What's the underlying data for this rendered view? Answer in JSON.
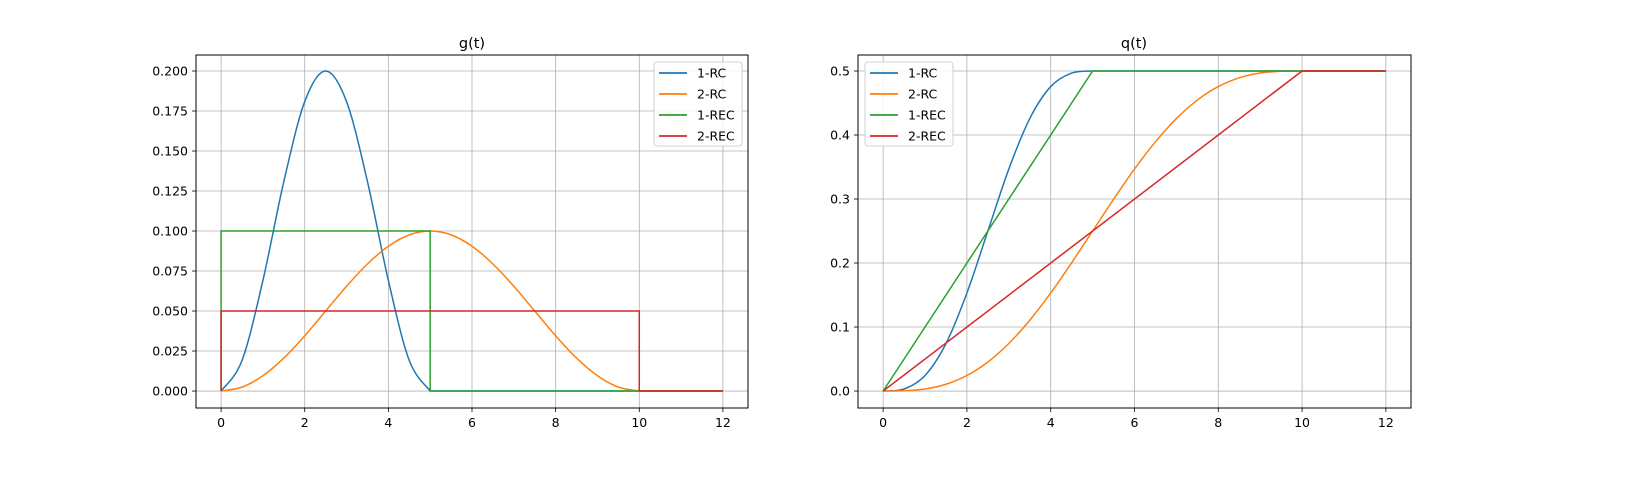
{
  "chart_data": [
    {
      "type": "line",
      "title": "g(t)",
      "xlabel": "",
      "ylabel": "",
      "xlim": [
        -0.6,
        12.6
      ],
      "ylim": [
        -0.0106,
        0.21
      ],
      "xticks": [
        0,
        2,
        4,
        6,
        8,
        10,
        12
      ],
      "xtick_labels": [
        "0",
        "2",
        "4",
        "6",
        "8",
        "10",
        "12"
      ],
      "yticks": [
        0,
        0.025,
        0.05,
        0.075,
        0.1,
        0.125,
        0.15,
        0.175,
        0.2
      ],
      "ytick_labels": [
        "0.000",
        "0.025",
        "0.050",
        "0.075",
        "0.100",
        "0.125",
        "0.150",
        "0.175",
        "0.200"
      ],
      "grid": true,
      "legend": "top-right",
      "series": [
        {
          "name": "1-RC",
          "color": "#1f77b4",
          "smooth": true,
          "points": [
            [
              0,
              0
            ],
            [
              0.5,
              0.0191
            ],
            [
              1,
              0.0691
            ],
            [
              1.5,
              0.1309
            ],
            [
              2,
              0.1809
            ],
            [
              2.5,
              0.2
            ],
            [
              3,
              0.1809
            ],
            [
              3.5,
              0.1309
            ],
            [
              4,
              0.0691
            ],
            [
              4.5,
              0.0191
            ],
            [
              5,
              0
            ],
            [
              12,
              0
            ]
          ]
        },
        {
          "name": "2-RC",
          "color": "#ff7f0e",
          "smooth": true,
          "points": [
            [
              0,
              0
            ],
            [
              0.5,
              0.00245
            ],
            [
              1,
              0.00955
            ],
            [
              1.5,
              0.0206
            ],
            [
              2,
              0.0345
            ],
            [
              2.5,
              0.05
            ],
            [
              3,
              0.0655
            ],
            [
              3.5,
              0.0794
            ],
            [
              4,
              0.0905
            ],
            [
              4.5,
              0.0976
            ],
            [
              5,
              0.1
            ],
            [
              5.5,
              0.0976
            ],
            [
              6,
              0.0905
            ],
            [
              6.5,
              0.0794
            ],
            [
              7,
              0.0655
            ],
            [
              7.5,
              0.05
            ],
            [
              8,
              0.0345
            ],
            [
              8.5,
              0.0206
            ],
            [
              9,
              0.00955
            ],
            [
              9.5,
              0.00245
            ],
            [
              10,
              0
            ],
            [
              12,
              0
            ]
          ]
        },
        {
          "name": "1-REC",
          "color": "#2ca02c",
          "smooth": false,
          "points": [
            [
              0,
              0
            ],
            [
              0,
              0.1
            ],
            [
              5,
              0.1
            ],
            [
              5,
              0
            ],
            [
              12,
              0
            ]
          ]
        },
        {
          "name": "2-REC",
          "color": "#d62728",
          "smooth": false,
          "points": [
            [
              0,
              0
            ],
            [
              0,
              0.05
            ],
            [
              10,
              0.05
            ],
            [
              10,
              0
            ],
            [
              12,
              0
            ]
          ]
        }
      ]
    },
    {
      "type": "line",
      "title": "q(t)",
      "xlabel": "",
      "ylabel": "",
      "xlim": [
        -0.6,
        12.6
      ],
      "ylim": [
        -0.0265,
        0.525
      ],
      "xticks": [
        0,
        2,
        4,
        6,
        8,
        10,
        12
      ],
      "xtick_labels": [
        "0",
        "2",
        "4",
        "6",
        "8",
        "10",
        "12"
      ],
      "yticks": [
        0,
        0.1,
        0.2,
        0.3,
        0.4,
        0.5
      ],
      "ytick_labels": [
        "0.0",
        "0.1",
        "0.2",
        "0.3",
        "0.4",
        "0.5"
      ],
      "grid": true,
      "legend": "top-left",
      "series": [
        {
          "name": "1-RC",
          "color": "#1f77b4",
          "smooth": true,
          "points": [
            [
              0,
              0
            ],
            [
              0.5,
              0.0032
            ],
            [
              1,
              0.0243
            ],
            [
              1.5,
              0.0743
            ],
            [
              2,
              0.1532
            ],
            [
              2.5,
              0.25
            ],
            [
              3,
              0.3468
            ],
            [
              3.5,
              0.4257
            ],
            [
              4,
              0.4757
            ],
            [
              4.5,
              0.4968
            ],
            [
              5,
              0.5
            ],
            [
              12,
              0.5
            ]
          ]
        },
        {
          "name": "2-RC",
          "color": "#ff7f0e",
          "smooth": true,
          "points": [
            [
              0,
              0
            ],
            [
              0.5,
              0.0004
            ],
            [
              1,
              0.0032
            ],
            [
              1.5,
              0.0106
            ],
            [
              2,
              0.0243
            ],
            [
              2.5,
              0.0454
            ],
            [
              3,
              0.0743
            ],
            [
              3.5,
              0.1106
            ],
            [
              4,
              0.1532
            ],
            [
              4.5,
              0.2004
            ],
            [
              5,
              0.25
            ],
            [
              5.5,
              0.2996
            ],
            [
              6,
              0.3468
            ],
            [
              6.5,
              0.3894
            ],
            [
              7,
              0.4257
            ],
            [
              7.5,
              0.4546
            ],
            [
              8,
              0.4757
            ],
            [
              8.5,
              0.4894
            ],
            [
              9,
              0.4968
            ],
            [
              9.5,
              0.4996
            ],
            [
              10,
              0.5
            ],
            [
              12,
              0.5
            ]
          ]
        },
        {
          "name": "1-REC",
          "color": "#2ca02c",
          "smooth": false,
          "points": [
            [
              0,
              0
            ],
            [
              5,
              0.5
            ],
            [
              12,
              0.5
            ]
          ]
        },
        {
          "name": "2-REC",
          "color": "#d62728",
          "smooth": false,
          "points": [
            [
              0,
              0
            ],
            [
              10,
              0.5
            ],
            [
              12,
              0.5
            ]
          ]
        }
      ]
    }
  ]
}
